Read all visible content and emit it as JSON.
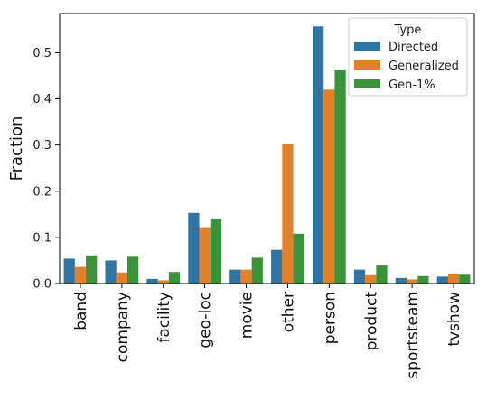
{
  "chart_data": {
    "type": "bar",
    "ylabel": "Fraction",
    "xlabel": "",
    "ylim": [
      0,
      0.585
    ],
    "yticks": [
      "0.0",
      "0.1",
      "0.2",
      "0.3",
      "0.4",
      "0.5"
    ],
    "categories": [
      "band",
      "company",
      "facility",
      "geo-loc",
      "movie",
      "other",
      "person",
      "product",
      "sportsteam",
      "tvshow"
    ],
    "legend": {
      "title": "Type",
      "placement": "top-right"
    },
    "series": [
      {
        "name": "Directed",
        "color": "#3274a1",
        "values": [
          0.054,
          0.05,
          0.01,
          0.153,
          0.03,
          0.073,
          0.557,
          0.03,
          0.012,
          0.015
        ]
      },
      {
        "name": "Generalized",
        "color": "#e1812c",
        "values": [
          0.036,
          0.024,
          0.007,
          0.122,
          0.03,
          0.302,
          0.42,
          0.018,
          0.009,
          0.021
        ]
      },
      {
        "name": "Gen-1%",
        "color": "#3a923a",
        "values": [
          0.061,
          0.058,
          0.025,
          0.141,
          0.056,
          0.108,
          0.462,
          0.039,
          0.016,
          0.019
        ]
      }
    ]
  }
}
